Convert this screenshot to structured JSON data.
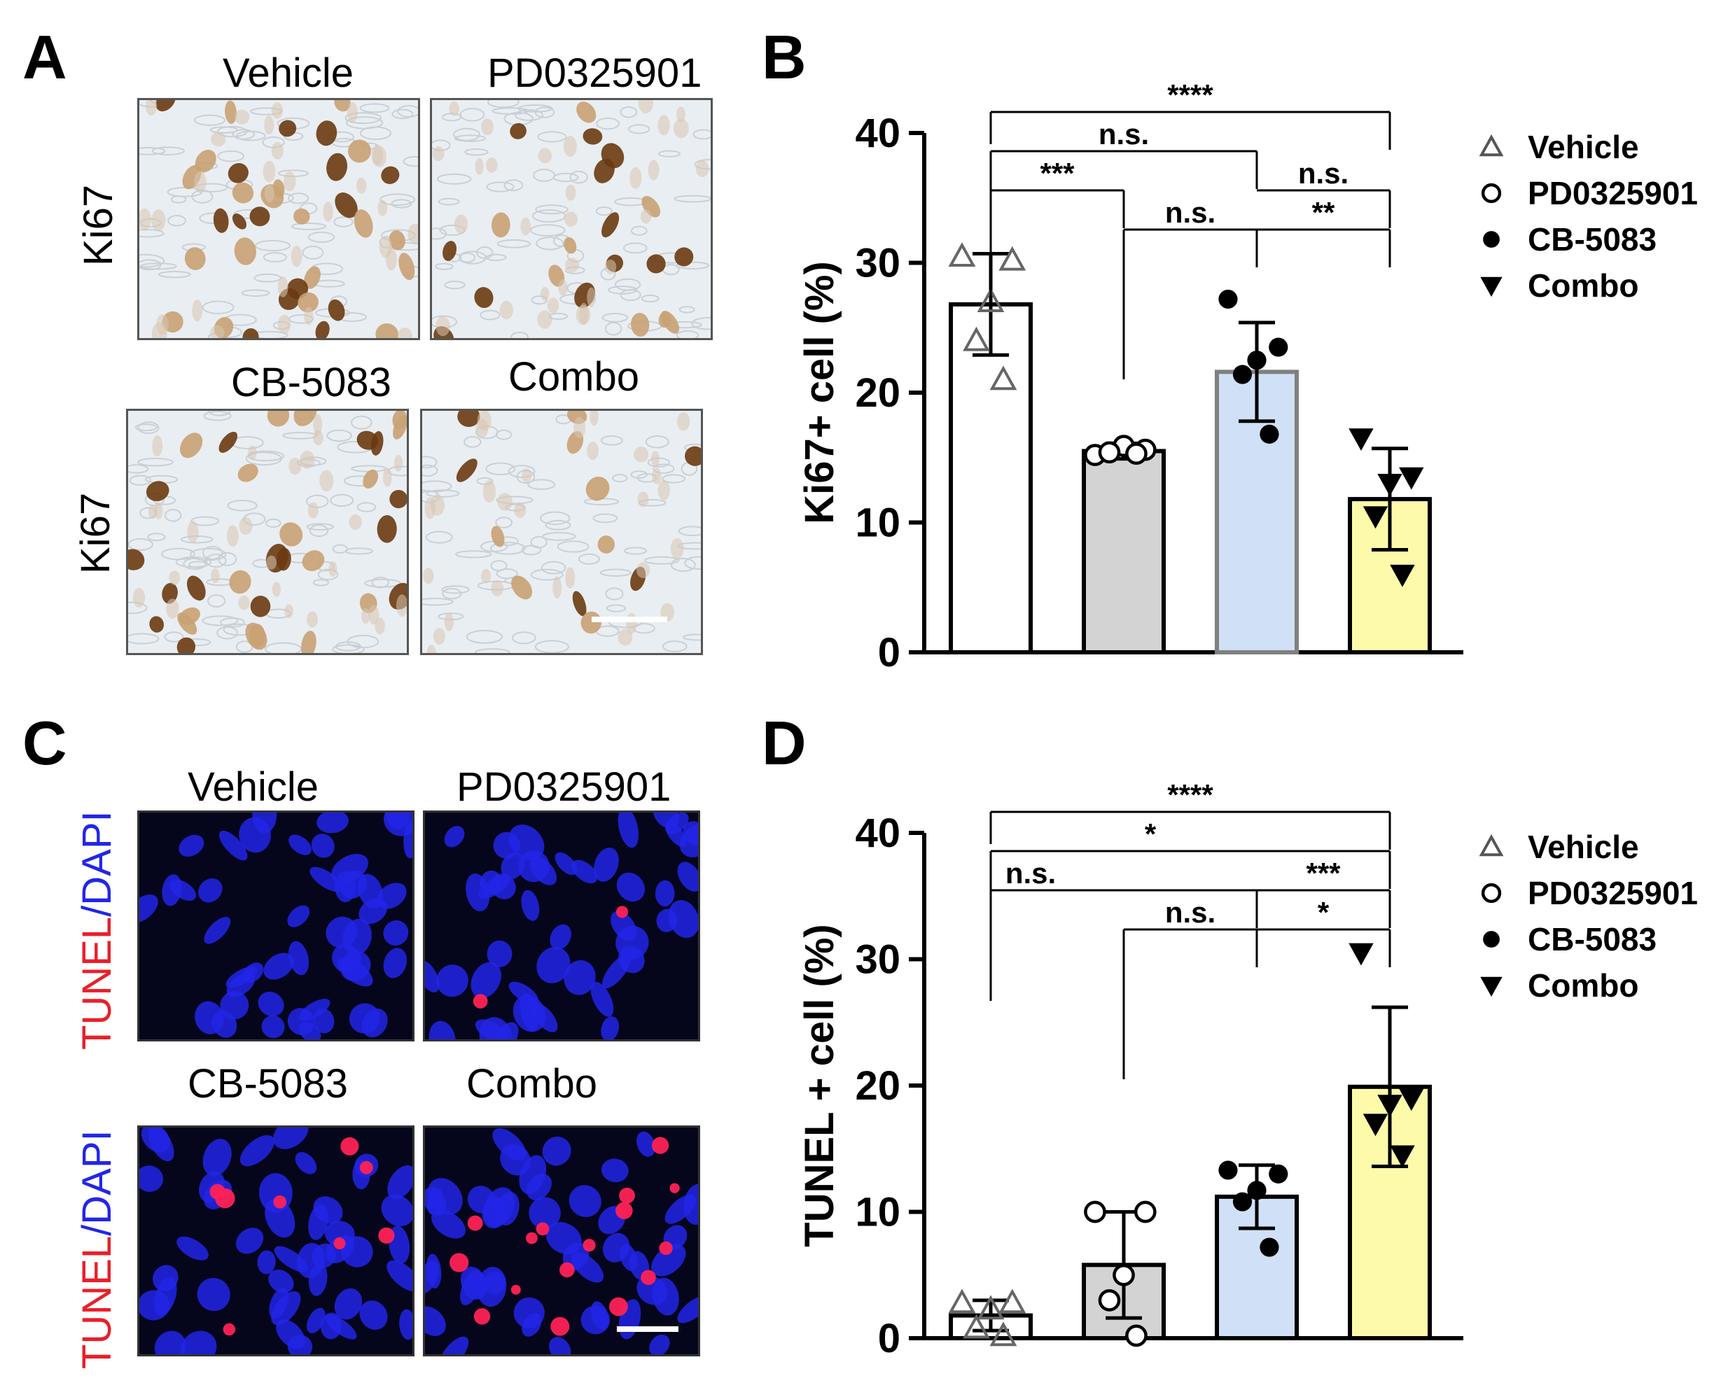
{
  "panels": {
    "A": {
      "letter": "A",
      "images": [
        {
          "label": "Vehicle",
          "stain": "ihc",
          "density": 1.0
        },
        {
          "label": "PD0325901",
          "stain": "ihc",
          "density": 0.6
        },
        {
          "label": "CB-5083",
          "stain": "ihc",
          "density": 0.9
        },
        {
          "label": "Combo",
          "stain": "ihc",
          "density": 0.35
        }
      ],
      "row_labels": [
        "Ki67",
        "Ki67"
      ],
      "colors": {
        "background": "#e9eef2",
        "nucleus_dark": "#6a3a10",
        "nucleus_light": "#c9a173"
      }
    },
    "B": {
      "letter": "B"
    },
    "C": {
      "letter": "C",
      "images": [
        {
          "label": "Vehicle",
          "stain": "if",
          "tunel": 0
        },
        {
          "label": "PD0325901",
          "stain": "if",
          "tunel": 2
        },
        {
          "label": "CB-5083",
          "stain": "if",
          "tunel": 8
        },
        {
          "label": "Combo",
          "stain": "if",
          "tunel": 16
        }
      ],
      "row_label": {
        "tunel": "TUNEL",
        "dapi": "/DAPI"
      },
      "colors": {
        "background": "#05061c",
        "dapi": "#2226e8",
        "tunel": "#ff2255"
      }
    },
    "D": {
      "letter": "D"
    }
  },
  "chart_data": [
    {
      "type": "bar",
      "panel": "B",
      "categories": [
        "Vehicle",
        "PD0325901",
        "CB-5083",
        "Combo"
      ],
      "values": [
        26.8,
        15.5,
        21.6,
        11.8
      ],
      "errors": [
        3.9,
        0.6,
        3.8,
        3.9
      ],
      "points": [
        [
          30.5,
          30.2,
          27,
          24,
          21
        ],
        [
          15.2,
          15.6,
          15.9,
          15.4,
          15.3
        ],
        [
          27.2,
          23.5,
          22.5,
          21.4,
          16.8
        ],
        [
          16.5,
          13.5,
          13.0,
          10.5,
          6.0
        ]
      ],
      "fills": [
        "#ffffff",
        "#d3d3d3",
        "#cfe0f7",
        "#fdfbaa"
      ],
      "edge_colors": [
        "#000000",
        "#000000",
        "#808080",
        "#000000"
      ],
      "markers": [
        "triangle-open",
        "circle-open",
        "circle-filled",
        "triangle-down-filled"
      ],
      "marker_colors": [
        "#666666",
        "#000000",
        "#000000",
        "#000000"
      ],
      "ylabel": "Ki67+ cell (%)",
      "xlabel": "",
      "ylim": [
        0,
        40
      ],
      "yticks": [
        0,
        10,
        20,
        30,
        40
      ],
      "brackets": [
        {
          "from": 0,
          "to": 3,
          "level": 4,
          "label": "****"
        },
        {
          "from": 0,
          "to": 2,
          "level": 3,
          "label": "n.s."
        },
        {
          "from": 0,
          "to": 1,
          "level": 2,
          "label": "***",
          "split": 2
        },
        {
          "from": 2,
          "to": 3,
          "level": 2,
          "label": "n.s.",
          "continuation": true
        },
        {
          "from": 1,
          "to": 2,
          "level": 1,
          "label": "n.s."
        },
        {
          "from": 2,
          "to": 3,
          "level": 1,
          "label": "**",
          "continuation": true
        }
      ],
      "legend": {
        "placement": "right",
        "entries": [
          {
            "name": "Vehicle",
            "marker": "triangle-open"
          },
          {
            "name": "PD0325901",
            "marker": "circle-open"
          },
          {
            "name": "CB-5083",
            "marker": "circle-filled"
          },
          {
            "name": "Combo",
            "marker": "triangle-down-filled"
          }
        ]
      },
      "grid": false
    },
    {
      "type": "bar",
      "panel": "D",
      "categories": [
        "Vehicle",
        "PD0325901",
        "CB-5083",
        "Combo"
      ],
      "values": [
        1.8,
        5.8,
        11.2,
        19.9
      ],
      "errors": [
        1.2,
        4.2,
        2.5,
        6.3
      ],
      "points": [
        [
          2.8,
          2.8,
          2.3,
          0.8,
          0.2
        ],
        [
          10.0,
          10.0,
          5.0,
          3.0,
          0.2
        ],
        [
          13.3,
          13.0,
          11.7,
          10.8,
          7.2
        ],
        [
          30.5,
          19.0,
          18.5,
          17.0,
          14.5
        ]
      ],
      "fills": [
        "#ffffff",
        "#d3d3d3",
        "#cfe0f7",
        "#fdfbaa"
      ],
      "edge_colors": [
        "#000000",
        "#000000",
        "#000000",
        "#000000"
      ],
      "markers": [
        "triangle-open",
        "circle-open",
        "circle-filled",
        "triangle-down-filled"
      ],
      "marker_colors": [
        "#666666",
        "#000000",
        "#000000",
        "#000000"
      ],
      "ylabel": "TUNEL + cell (%)",
      "xlabel": "",
      "ylim": [
        0,
        40
      ],
      "yticks": [
        0,
        10,
        20,
        30,
        40
      ],
      "brackets": [
        {
          "from": 0,
          "to": 3,
          "level": 4,
          "label": "****"
        },
        {
          "from": 0,
          "to": 3,
          "level": 3,
          "label": "*",
          "labelAt": 1.2
        },
        {
          "from": 0,
          "to": 2,
          "level": 2,
          "label": "n.s.",
          "labelAt": 0.3
        },
        {
          "from": 2,
          "to": 3,
          "level": 2,
          "label": "***",
          "continuation": true
        },
        {
          "from": 1,
          "to": 2,
          "level": 1,
          "label": "n.s."
        },
        {
          "from": 2,
          "to": 3,
          "level": 1,
          "label": "*",
          "continuation": true
        }
      ],
      "legend": {
        "placement": "right",
        "entries": [
          {
            "name": "Vehicle",
            "marker": "triangle-open"
          },
          {
            "name": "PD0325901",
            "marker": "circle-open"
          },
          {
            "name": "CB-5083",
            "marker": "circle-filled"
          },
          {
            "name": "Combo",
            "marker": "triangle-down-filled"
          }
        ]
      },
      "grid": false
    }
  ]
}
